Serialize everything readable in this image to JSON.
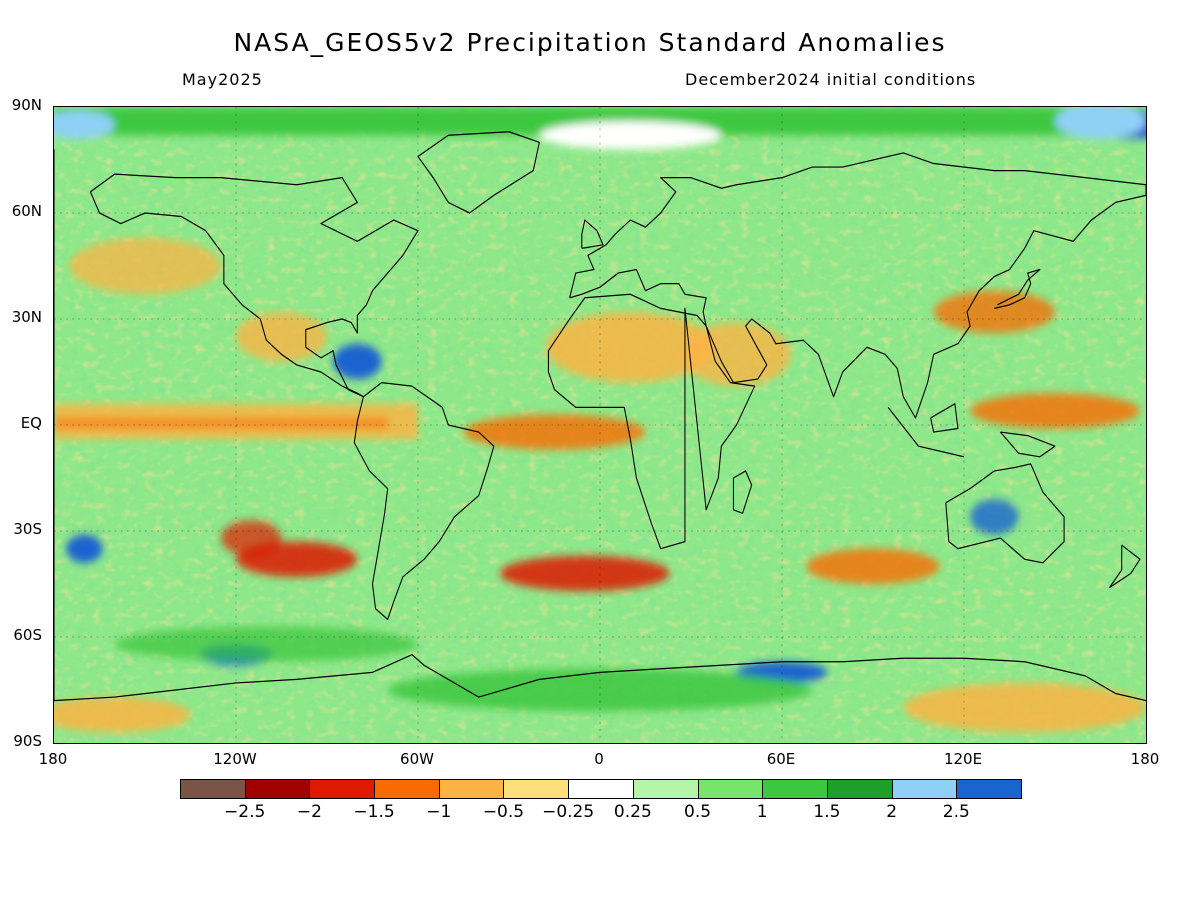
{
  "title": "NASA_GEOS5v2 Precipitation Standard Anomalies",
  "subtitle_left": "May2025",
  "subtitle_right": "December2024 initial conditions",
  "lat_ticks": [
    {
      "label": "90N",
      "lat": 90
    },
    {
      "label": "60N",
      "lat": 60
    },
    {
      "label": "30N",
      "lat": 30
    },
    {
      "label": "EQ",
      "lat": 0
    },
    {
      "label": "30S",
      "lat": -30
    },
    {
      "label": "60S",
      "lat": -60
    },
    {
      "label": "90S",
      "lat": -90
    }
  ],
  "lon_ticks": [
    {
      "label": "180",
      "lon": -180
    },
    {
      "label": "120W",
      "lon": -120
    },
    {
      "label": "60W",
      "lon": -60
    },
    {
      "label": "0",
      "lon": 0
    },
    {
      "label": "60E",
      "lon": 60
    },
    {
      "label": "120E",
      "lon": 120
    },
    {
      "label": "180",
      "lon": 180
    }
  ],
  "colorbar": {
    "colors": [
      "#7a5546",
      "#a30000",
      "#dd1a00",
      "#fa6a00",
      "#fbb443",
      "#fde07a",
      "#ffffff",
      "#b6f5a8",
      "#77e46c",
      "#3cc741",
      "#1e9e2a",
      "#8fd0f7",
      "#1a64d0"
    ],
    "labels": [
      "−2.5",
      "−2",
      "−1.5",
      "−1",
      "−0.5",
      "−0.25",
      "0.25",
      "0.5",
      "1",
      "1.5",
      "2",
      "2.5"
    ]
  }
}
